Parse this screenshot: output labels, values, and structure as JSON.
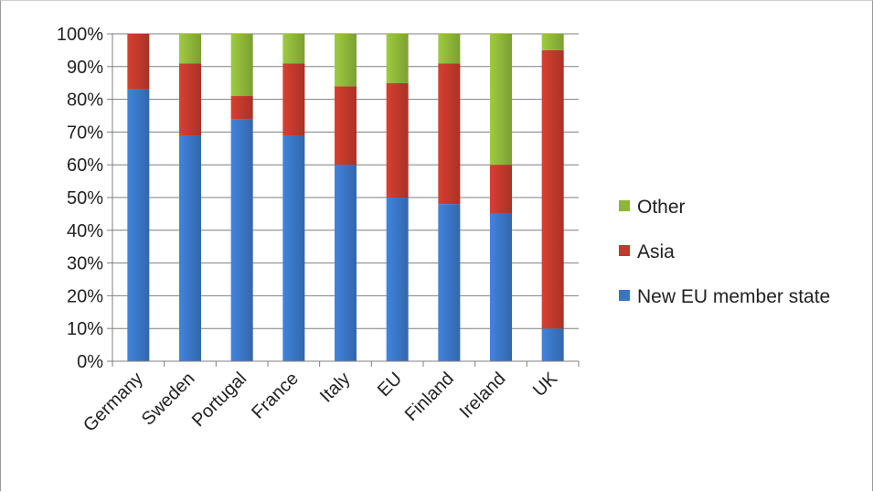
{
  "chart_data": {
    "type": "bar",
    "stacked": true,
    "percent": true,
    "categories": [
      "Germany",
      "Sweden",
      "Portugal",
      "France",
      "Italy",
      "EU",
      "Finland",
      "Ireland",
      "UK"
    ],
    "series": [
      {
        "name": "New EU member state",
        "color": "#3a75c4",
        "values": [
          83,
          69,
          74,
          69,
          60,
          50,
          48,
          45,
          10
        ]
      },
      {
        "name": "Asia",
        "color": "#c0392b",
        "values": [
          17,
          22,
          7,
          22,
          24,
          35,
          43,
          15,
          85
        ]
      },
      {
        "name": "Other",
        "color": "#8db53a",
        "values": [
          0,
          9,
          19,
          9,
          16,
          15,
          9,
          40,
          5
        ]
      }
    ],
    "y_ticks": [
      "0%",
      "10%",
      "20%",
      "30%",
      "40%",
      "50%",
      "60%",
      "70%",
      "80%",
      "90%",
      "100%"
    ],
    "ylim": [
      0,
      100
    ],
    "grid": true,
    "legend_position": "right",
    "legend_order": [
      "Other",
      "Asia",
      "New EU member state"
    ]
  }
}
